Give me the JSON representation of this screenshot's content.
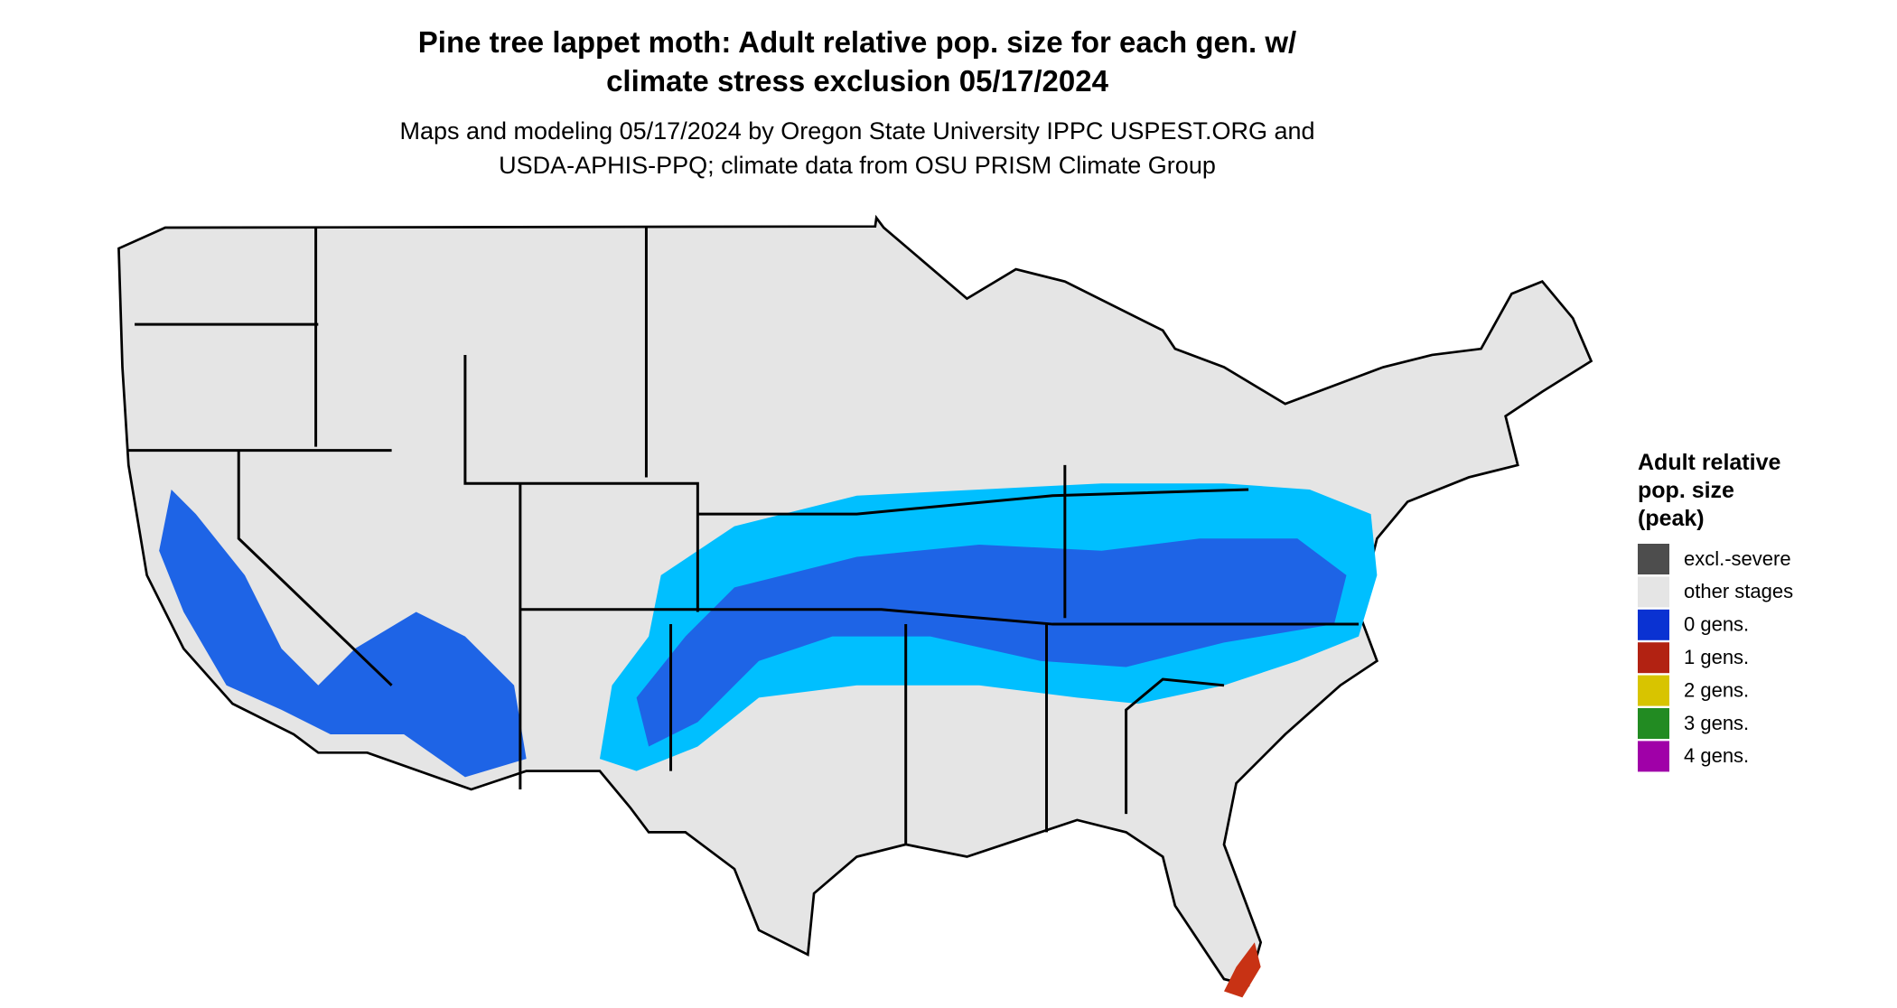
{
  "title": [
    "Pine tree lappet moth: Adult relative pop. size for each gen. w/",
    "climate stress exclusion 05/17/2024"
  ],
  "subtitle": [
    "Maps and modeling 05/17/2024 by Oregon State University IPPC USPEST.ORG and",
    "USDA-APHIS-PPQ; climate data from OSU PRISM Climate Group"
  ],
  "legend": {
    "title": [
      "Adult relative",
      "pop. size",
      "(peak)"
    ],
    "items": [
      {
        "label": "excl.-severe",
        "color": "#4d4d4d"
      },
      {
        "label": "other stages",
        "color": "#e5e5e5"
      },
      {
        "label": "0 gens.",
        "color": "#0a32d2"
      },
      {
        "label": "1 gens.",
        "color": "#b22212"
      },
      {
        "label": "2 gens.",
        "color": "#d8c400"
      },
      {
        "label": "3 gens.",
        "color": "#228b22"
      },
      {
        "label": "4 gens.",
        "color": "#a000a8"
      }
    ]
  }
}
